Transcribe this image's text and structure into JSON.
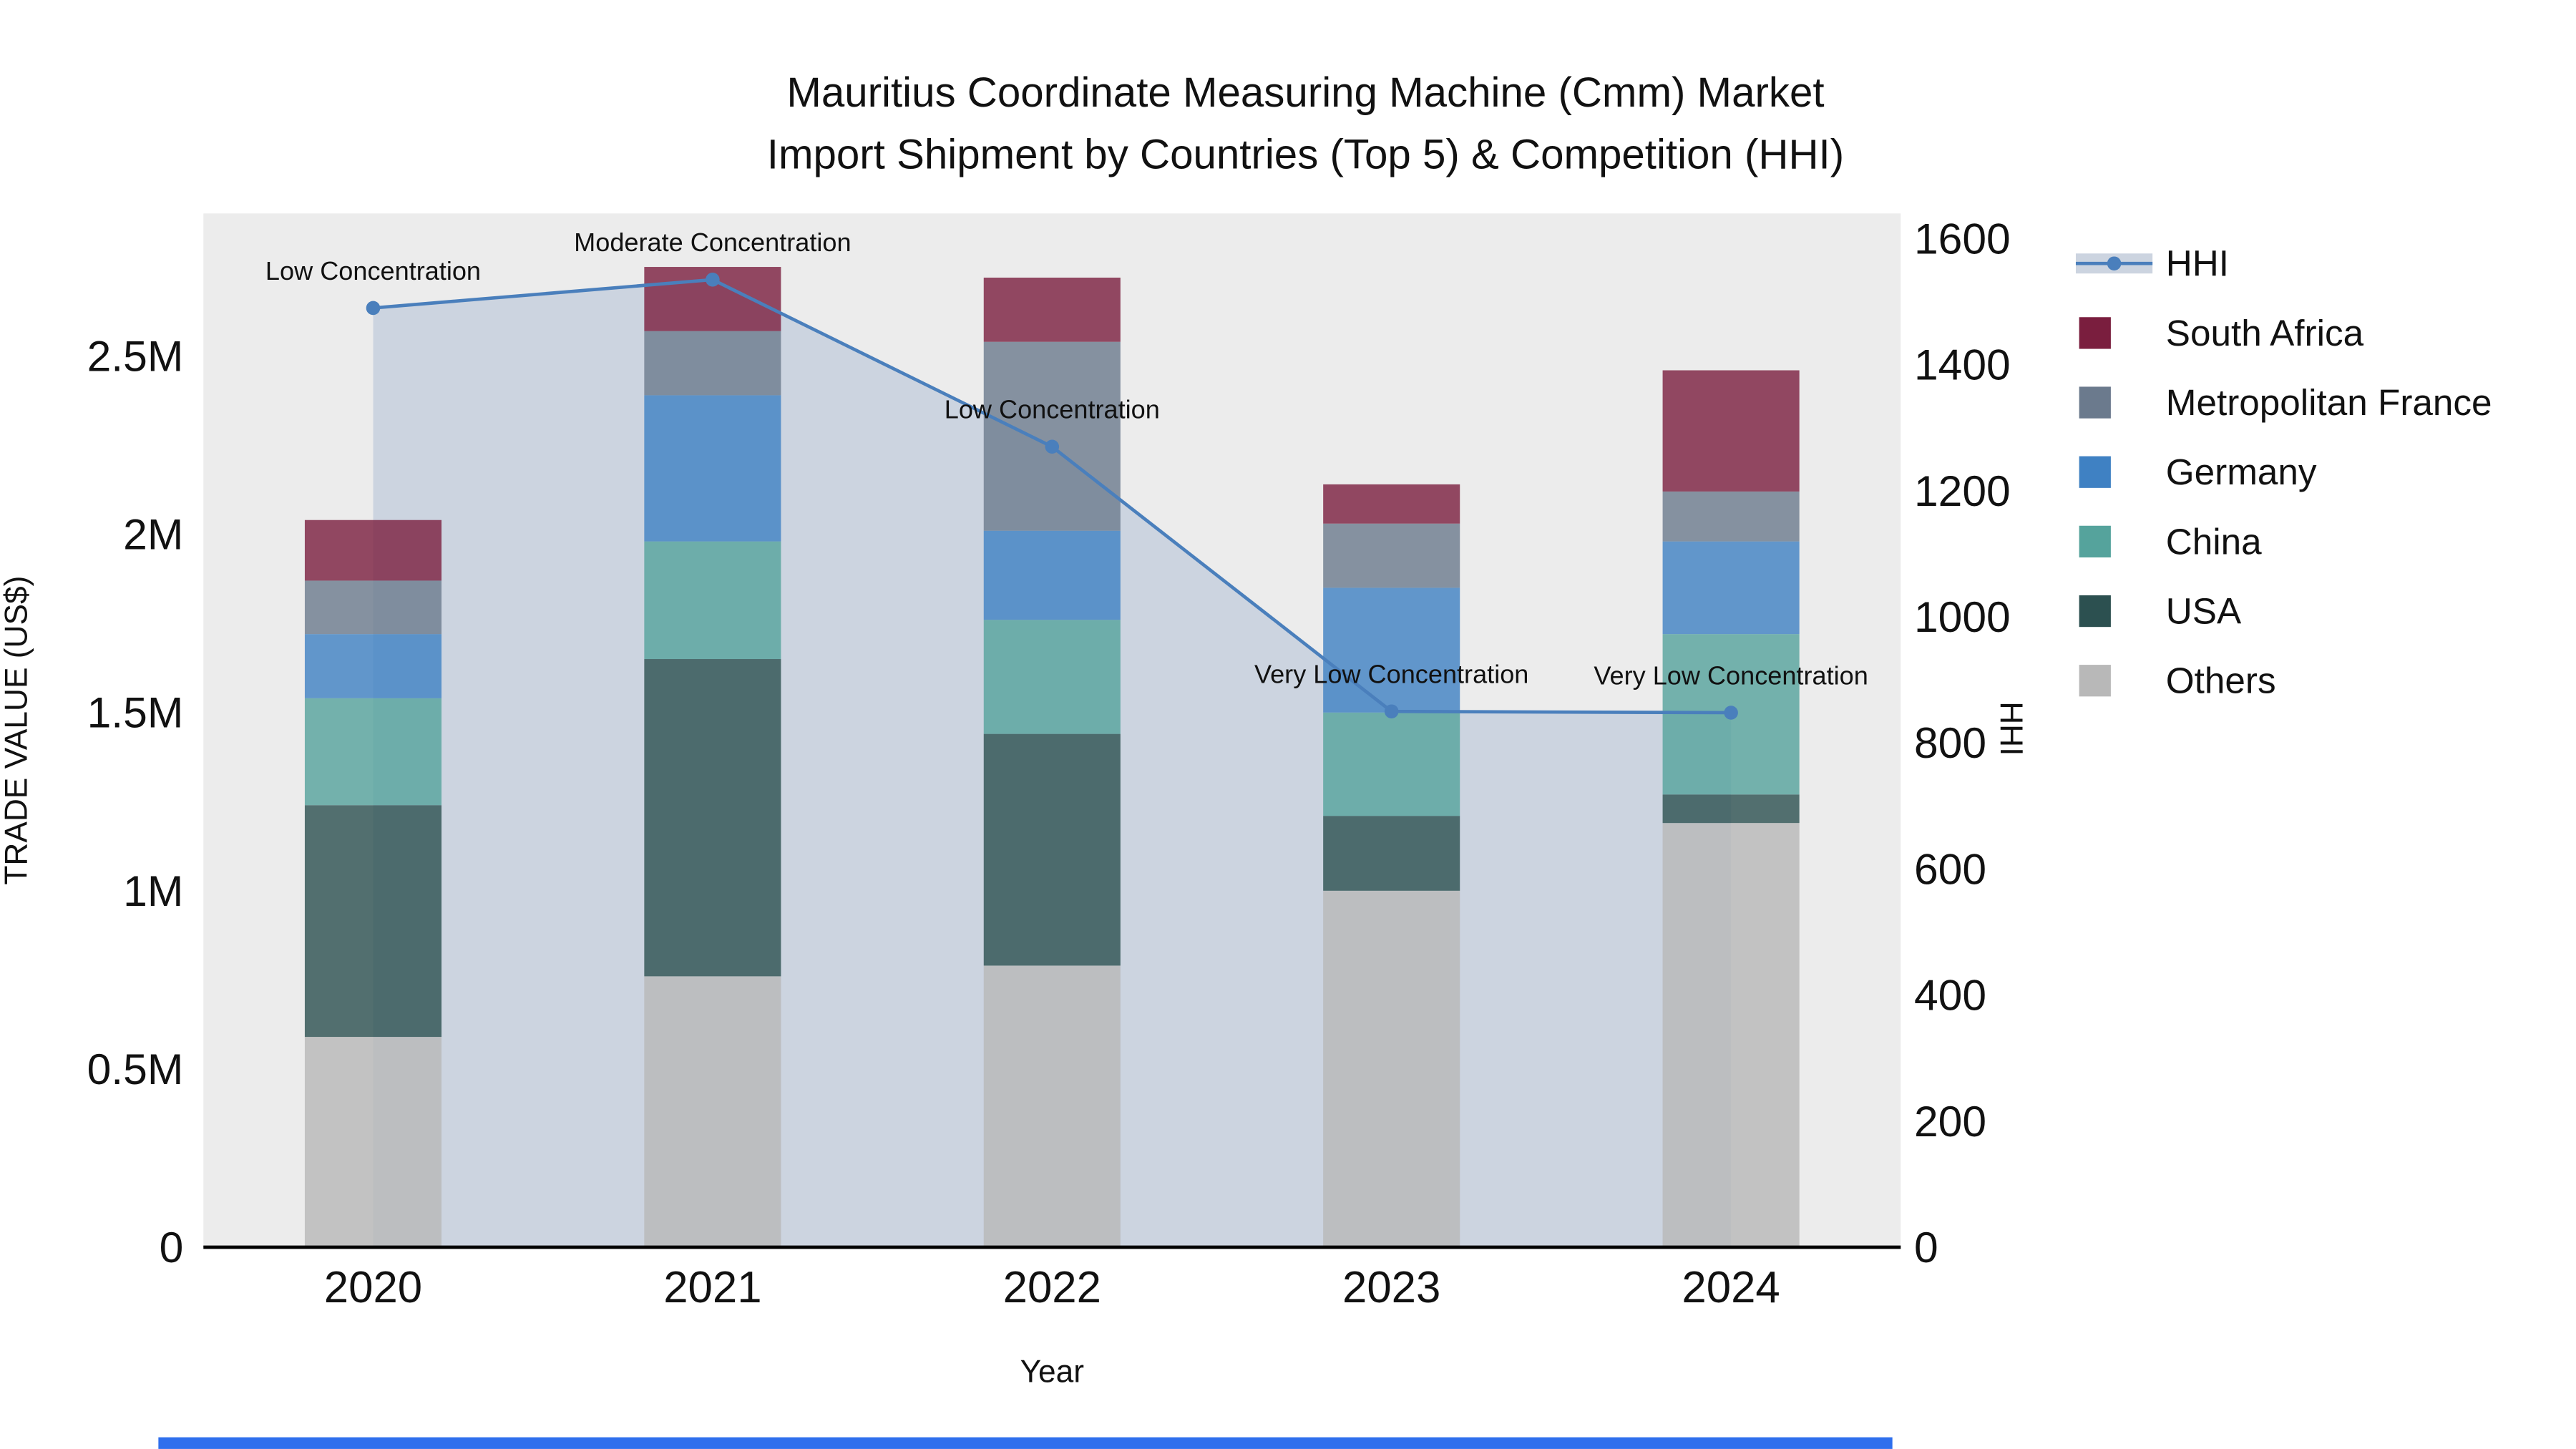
{
  "title": {
    "line1": "Mauritius Coordinate Measuring Machine (Cmm) Market",
    "line2": "Import Shipment by Countries (Top 5) & Competition (HHI)"
  },
  "axes": {
    "left_title": "TRADE VALUE (US$)",
    "right_title": "HHI",
    "x_title": "Year"
  },
  "chart_data": {
    "type": "bar",
    "subtype": "stacked bars (trade value) with HHI line overlay and shaded area",
    "categories": [
      "2020",
      "2021",
      "2022",
      "2023",
      "2024"
    ],
    "value_unit": "M US$",
    "series": [
      {
        "name": "Others",
        "color": "#b8b8b8",
        "values": [
          0.59,
          0.76,
          0.79,
          1.0,
          1.19
        ]
      },
      {
        "name": "USA",
        "color": "#2c5050",
        "values": [
          0.65,
          0.89,
          0.65,
          0.21,
          0.08
        ]
      },
      {
        "name": "China",
        "color": "#55a39c",
        "values": [
          0.3,
          0.33,
          0.32,
          0.29,
          0.45
        ]
      },
      {
        "name": "Germany",
        "color": "#3f81c3",
        "values": [
          0.18,
          0.41,
          0.25,
          0.35,
          0.26
        ]
      },
      {
        "name": "Metropolitan France",
        "color": "#6b7a8d",
        "values": [
          0.15,
          0.18,
          0.53,
          0.18,
          0.14
        ]
      },
      {
        "name": "South Africa",
        "color": "#7a1e3e",
        "values": [
          0.17,
          0.18,
          0.18,
          0.11,
          0.34
        ]
      }
    ],
    "line": {
      "name": "HHI",
      "color": "#4a7fbc",
      "area_fill": "#ccd4e0",
      "values": [
        1490,
        1535,
        1270,
        850,
        848
      ]
    },
    "annotations": [
      "Low Concentration",
      "Moderate Concentration",
      "Low Concentration",
      "Very Low Concentration",
      "Very Low Concentration"
    ],
    "left_axis": {
      "tick_labels": [
        "0",
        "0.5M",
        "1M",
        "1.5M",
        "2M",
        "2.5M"
      ],
      "tick_values": [
        0,
        0.5,
        1,
        1.5,
        2,
        2.5
      ],
      "range": [
        0,
        2.9
      ]
    },
    "right_axis": {
      "tick_labels": [
        "0",
        "200",
        "400",
        "600",
        "800",
        "1000",
        "1200",
        "1400",
        "1600"
      ],
      "tick_values": [
        0,
        200,
        400,
        600,
        800,
        1000,
        1200,
        1400,
        1600
      ],
      "range": [
        0,
        1640
      ]
    },
    "plot_bg": "#ececec",
    "bar_opacity": 0.8,
    "legend_position": "right"
  },
  "legend": {
    "items": [
      {
        "label": "HHI",
        "type": "line",
        "color": "#4a7fbc",
        "fill": "#ccd4e0"
      },
      {
        "label": "South Africa",
        "type": "swatch",
        "color": "#7a1e3e"
      },
      {
        "label": "Metropolitan France",
        "type": "swatch",
        "color": "#6b7a8d"
      },
      {
        "label": "Germany",
        "type": "swatch",
        "color": "#3f81c3"
      },
      {
        "label": "China",
        "type": "swatch",
        "color": "#55a39c"
      },
      {
        "label": "USA",
        "type": "swatch",
        "color": "#2c5050"
      },
      {
        "label": "Others",
        "type": "swatch",
        "color": "#b8b8b8"
      }
    ]
  },
  "footer_bar_color": "#2f6fed"
}
